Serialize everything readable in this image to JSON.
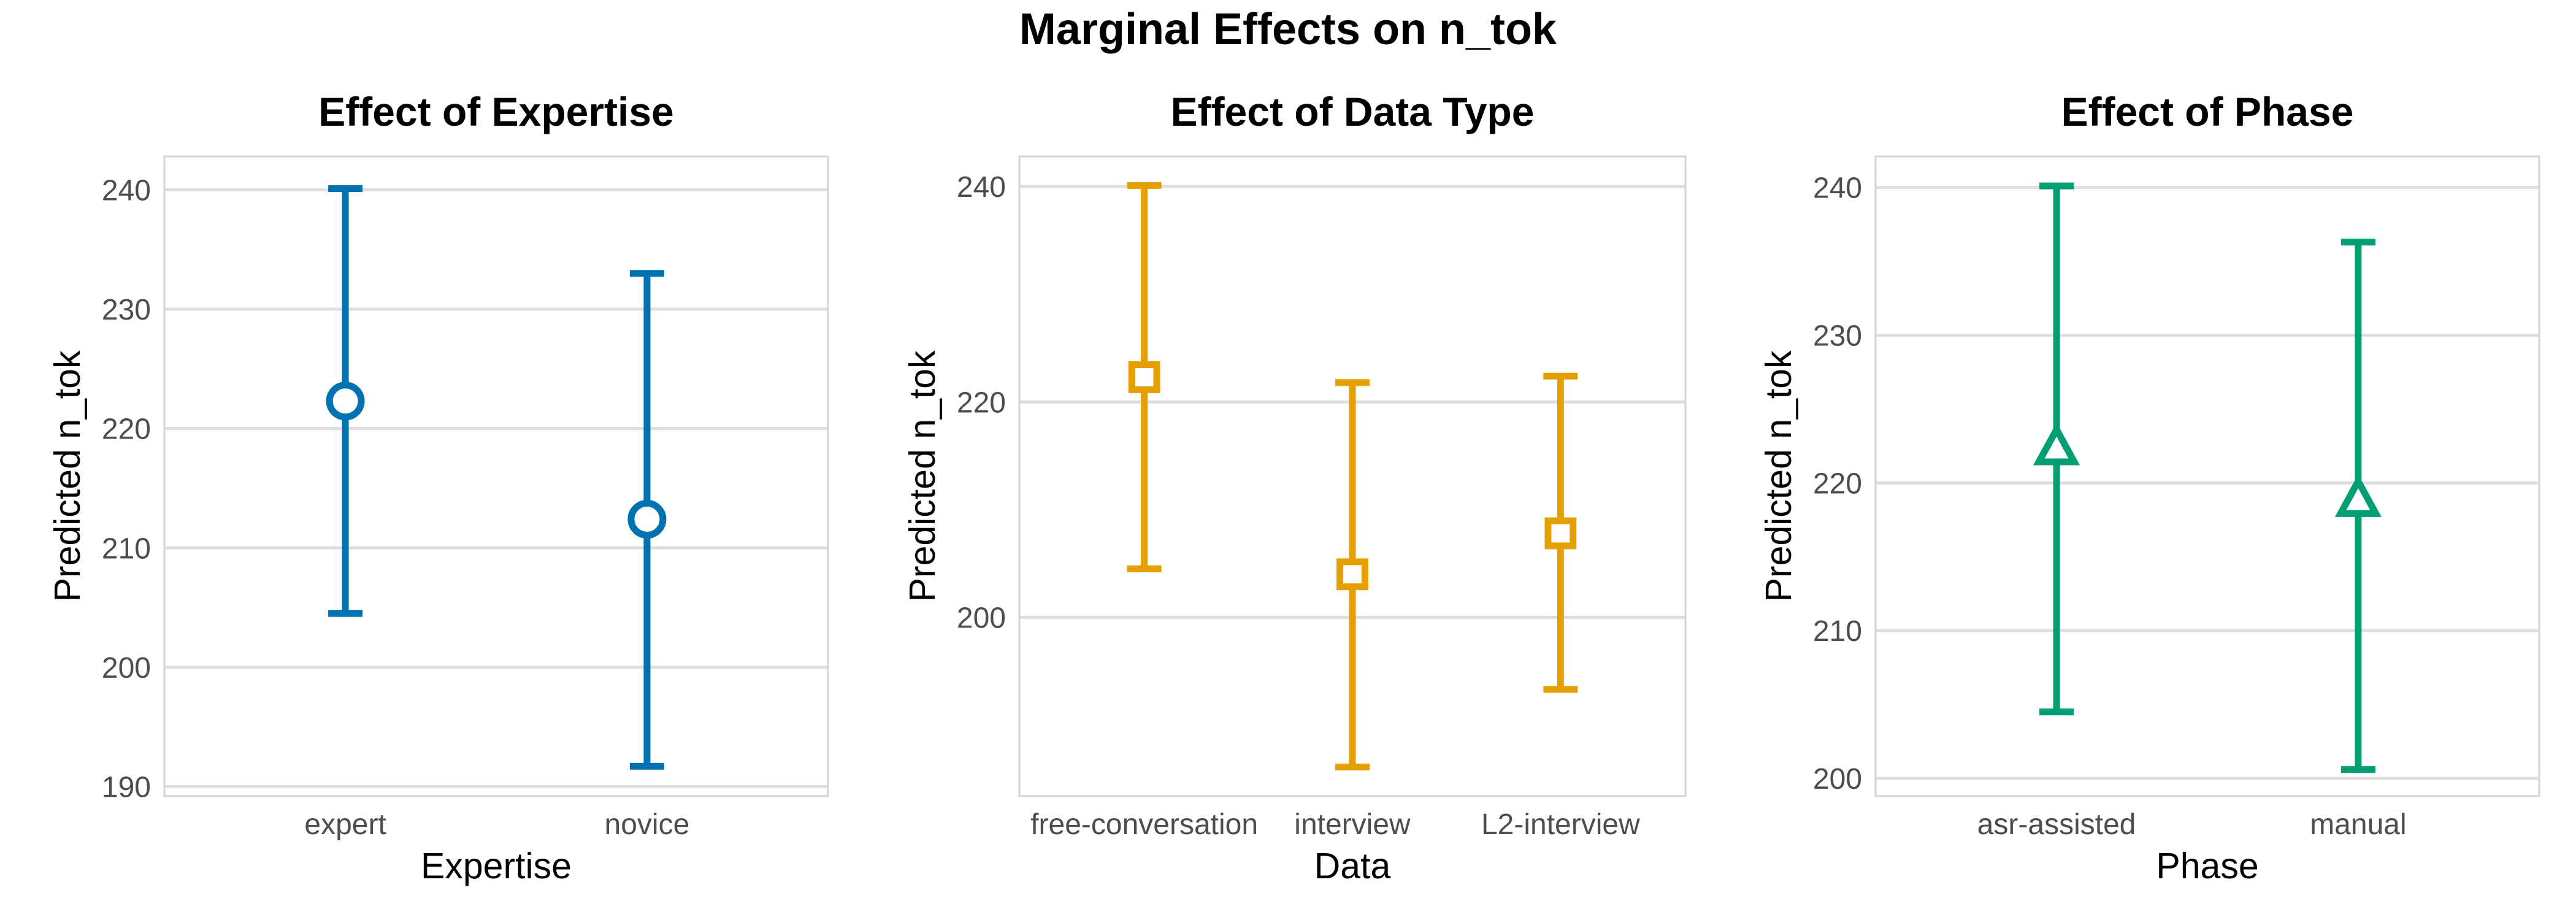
{
  "title": "Marginal Effects on n_tok",
  "chart_data": [
    {
      "type": "errorbar",
      "title": "Effect of Expertise",
      "xlabel": "Expertise",
      "ylabel": "Predicted n_tok",
      "categories": [
        "expert",
        "novice"
      ],
      "estimates": [
        222.3,
        212.4
      ],
      "lower": [
        204.5,
        191.7
      ],
      "upper": [
        240.1,
        233.0
      ],
      "ylim": [
        189.2,
        242.8
      ],
      "yticks": [
        190,
        200,
        210,
        220,
        230,
        240
      ],
      "marker": "circle",
      "color": "#0072B2",
      "grid": true
    },
    {
      "type": "errorbar",
      "title": "Effect of Data Type",
      "xlabel": "Data",
      "ylabel": "Predicted n_tok",
      "categories": [
        "free-conversation",
        "interview",
        "L2-interview"
      ],
      "estimates": [
        222.3,
        204.0,
        207.8
      ],
      "lower": [
        204.5,
        186.1,
        193.3
      ],
      "upper": [
        240.1,
        221.8,
        222.4
      ],
      "ylim": [
        183.4,
        242.8
      ],
      "yticks": [
        200,
        220,
        240
      ],
      "marker": "square",
      "color": "#E69F00",
      "grid": true
    },
    {
      "type": "errorbar",
      "title": "Effect of Phase",
      "xlabel": "Phase",
      "ylabel": "Predicted n_tok",
      "categories": [
        "asr-assisted",
        "manual"
      ],
      "estimates": [
        222.3,
        218.8
      ],
      "lower": [
        204.5,
        200.6
      ],
      "upper": [
        240.1,
        236.3
      ],
      "ylim": [
        198.8,
        242.1
      ],
      "yticks": [
        200,
        210,
        220,
        230,
        240
      ],
      "marker": "triangle",
      "color": "#009E73",
      "grid": true
    }
  ]
}
